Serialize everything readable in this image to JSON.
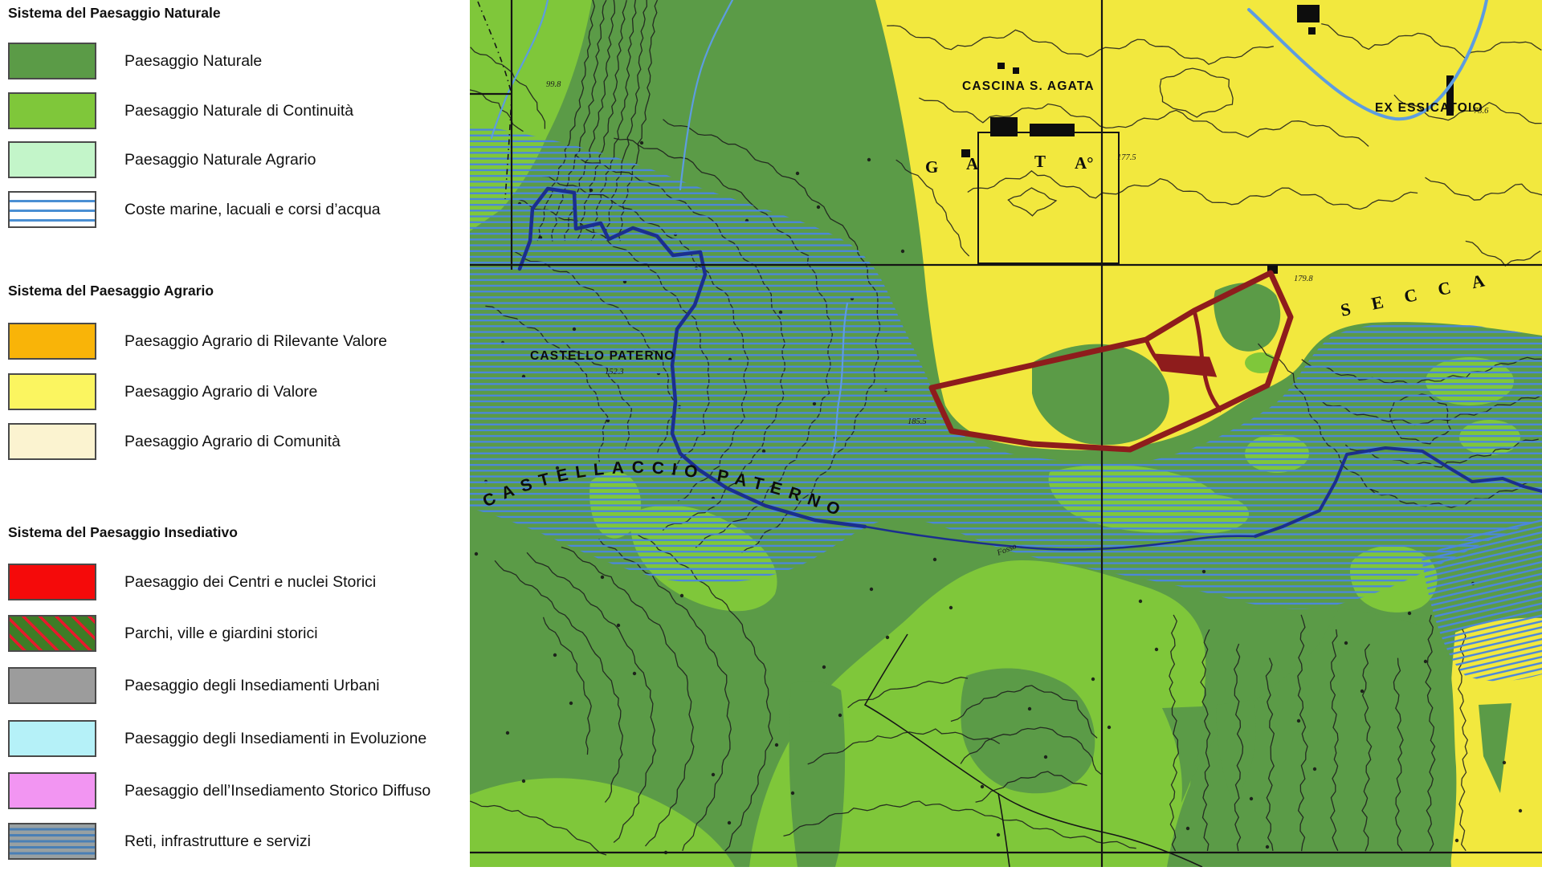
{
  "legend": {
    "sections": [
      {
        "title": "Sistema del Paesaggio Naturale",
        "items": [
          {
            "key": "paesaggio-naturale",
            "label": "Paesaggio Naturale",
            "swatch": "solid",
            "color": "#5b9b47"
          },
          {
            "key": "paesaggio-naturale-continuita",
            "label": "Paesaggio Naturale di Continuità",
            "swatch": "solid",
            "color": "#7fc73a"
          },
          {
            "key": "paesaggio-naturale-agrario",
            "label": "Paesaggio Naturale Agrario",
            "swatch": "solid",
            "color": "#c3f5c9"
          },
          {
            "key": "coste-marine",
            "label": "Coste marine, lacuali e corsi d’acqua",
            "swatch": "water-lines",
            "color": "#4a8fd3"
          }
        ]
      },
      {
        "title": "Sistema del Paesaggio Agrario",
        "items": [
          {
            "key": "agrario-rilevante-valore",
            "label": "Paesaggio Agrario di Rilevante Valore",
            "swatch": "solid",
            "color": "#f9b408"
          },
          {
            "key": "agrario-valore",
            "label": "Paesaggio Agrario di Valore",
            "swatch": "solid",
            "color": "#fbf560"
          },
          {
            "key": "agrario-comunita",
            "label": "Paesaggio Agrario di Comunità",
            "swatch": "solid",
            "color": "#fbf3d0"
          }
        ]
      },
      {
        "title": "Sistema del Paesaggio Insediativo",
        "items": [
          {
            "key": "centri-nuclei-storici",
            "label": "Paesaggio dei Centri e nuclei Storici",
            "swatch": "solid",
            "color": "#f50a0a"
          },
          {
            "key": "parchi-ville-giardini",
            "label": "Parchi, ville e giardini storici",
            "swatch": "park-hatch",
            "color": "#3e7c26",
            "stripe": "#e8192c"
          },
          {
            "key": "insediamenti-urbani",
            "label": "Paesaggio degli Insediamenti Urbani",
            "swatch": "solid",
            "color": "#9c9c9c"
          },
          {
            "key": "insediamenti-evoluzione",
            "label": "Paesaggio degli Insediamenti in Evoluzione",
            "swatch": "solid",
            "color": "#b5f1f8"
          },
          {
            "key": "insediamento-storico-diffuso",
            "label": "Paesaggio dell’Insediamento Storico Diffuso",
            "swatch": "solid",
            "color": "#f295f2"
          },
          {
            "key": "reti-infrastrutture",
            "label": "Reti, infrastrutture e servizi",
            "swatch": "infra-lines",
            "color": "#98a0a2",
            "stripe": "#4a7fb5"
          }
        ]
      }
    ]
  },
  "map": {
    "labels": {
      "cascina": "CASCINA S. AGATA",
      "ex_essicatoio": "EX ESSICATOIO",
      "castello": "CASTELLO PATERNO",
      "castellaccio": "CASTELLACCIO PATERNO",
      "secca": "SECCA",
      "fosso": "Fosso",
      "gata_letters": [
        "G",
        "A",
        "T",
        "A°"
      ],
      "elevations": [
        "99.8",
        "177.5",
        "152.3",
        "73.6",
        "185.5",
        "179.8"
      ]
    },
    "colors": {
      "agrario_yellow": "#f2e83e",
      "naturale_dark_green": "#5b9b47",
      "continuita_bright_green": "#7fc73a",
      "water_hatch_blue": "#4b87dd",
      "river_navy": "#1b2f8e",
      "stream_light_blue": "#5d9ce0",
      "site_boundary_maroon": "#8e1c1c",
      "grid_black": "#141414"
    }
  }
}
